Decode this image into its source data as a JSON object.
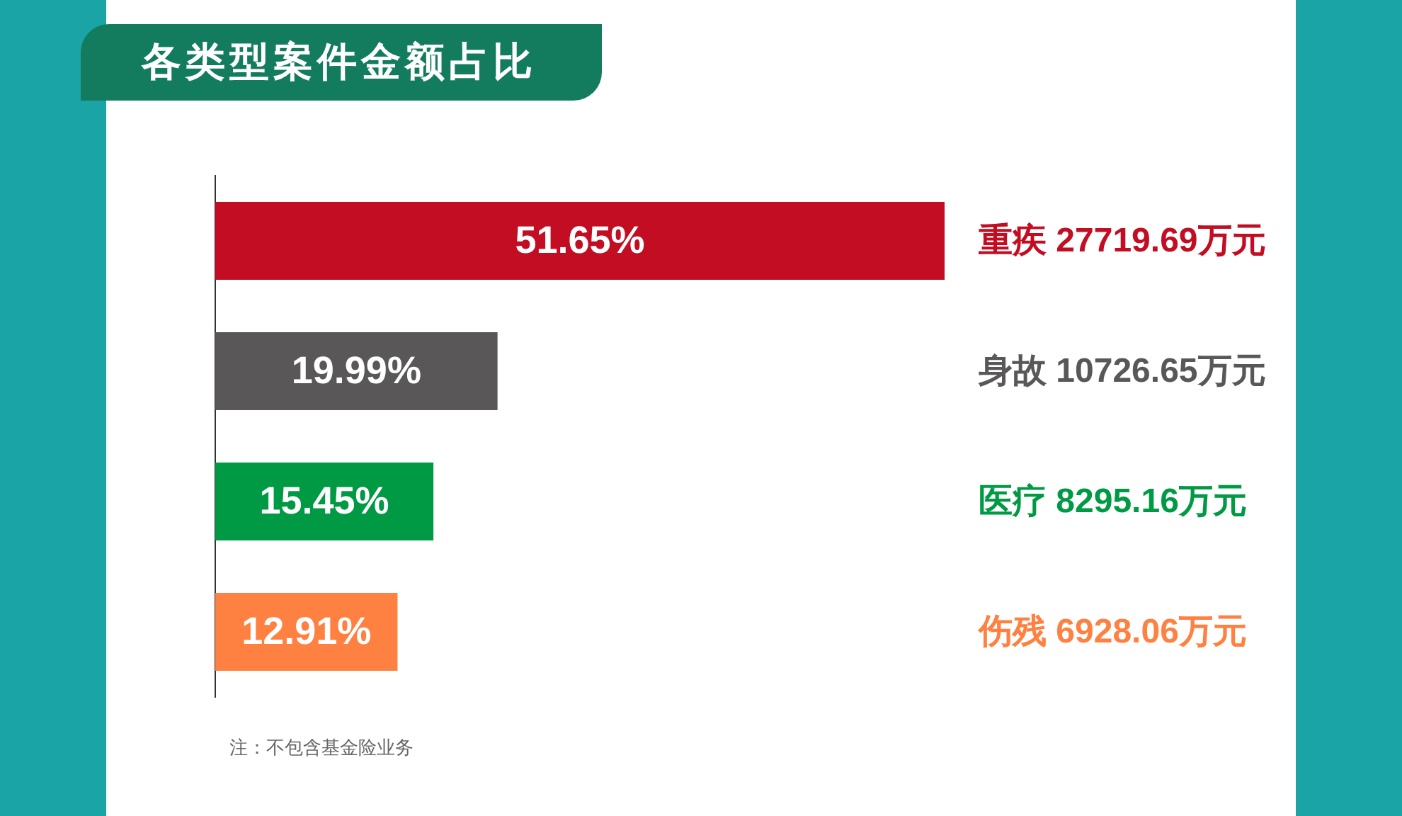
{
  "chart_data": {
    "type": "bar",
    "orientation": "horizontal",
    "title": "各类型案件金额占比",
    "categories": [
      "重疾 27719.69万元",
      "身故 10726.65万元",
      "医疗 8295.16万元",
      "伤残 6928.06万元"
    ],
    "values": [
      51.65,
      19.99,
      15.45,
      12.91
    ],
    "value_labels": [
      "51.65%",
      "19.99%",
      "15.45%",
      "12.91%"
    ],
    "colors": [
      "#c20d23",
      "#595757",
      "#009a44",
      "#ff8142"
    ],
    "annotations": [
      "注：不包含基金险业务"
    ]
  }
}
